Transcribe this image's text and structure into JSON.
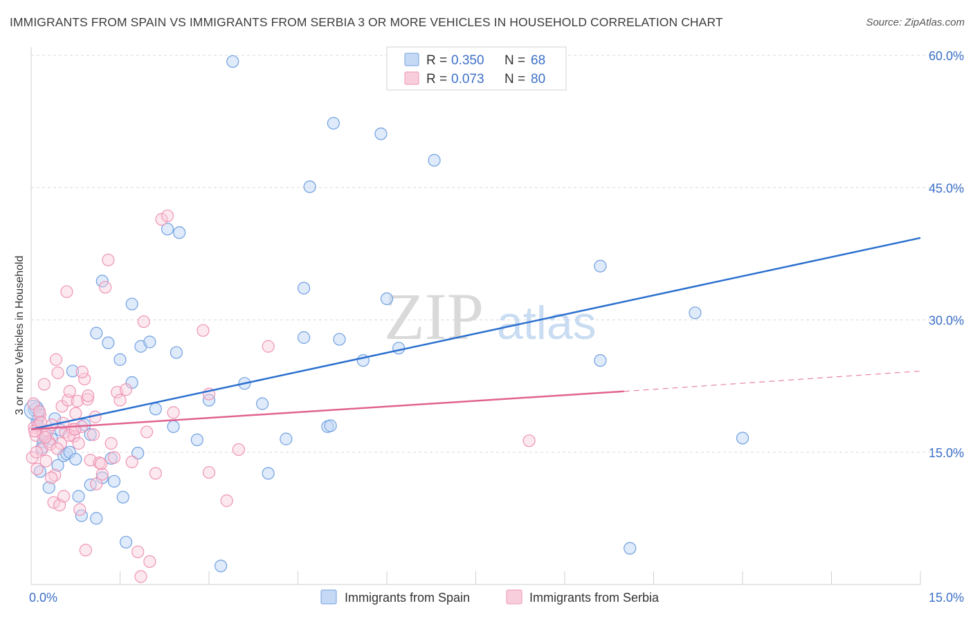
{
  "title": "IMMIGRANTS FROM SPAIN VS IMMIGRANTS FROM SERBIA 3 OR MORE VEHICLES IN HOUSEHOLD CORRELATION CHART",
  "source": "Source: ZipAtlas.com",
  "watermark": {
    "zip": "ZIP",
    "atlas": "atlas"
  },
  "colors": {
    "spain": "#6fa0e0",
    "spain_fill": "#c5d9f5",
    "spain_line": "#2a6fcf",
    "serbia": "#ee94b4",
    "serbia_fill": "#f8cddc",
    "serbia_line": "#e0628f",
    "tick_text": "#3b6fc7",
    "grid": "#d8d8d8"
  },
  "legend": {
    "rows": [
      {
        "r_label": "R =",
        "r_value": "0.350",
        "n_label": "N =",
        "n_value": "68"
      },
      {
        "r_label": "R =",
        "r_value": "0.073",
        "n_label": "N =",
        "n_value": "80"
      }
    ]
  },
  "bottom_legend": {
    "spain": "Immigrants from Spain",
    "serbia": "Immigrants from Serbia"
  },
  "chart_data": {
    "type": "scatter",
    "title": "IMMIGRANTS FROM SPAIN VS IMMIGRANTS FROM SERBIA 3 OR MORE VEHICLES IN HOUSEHOLD CORRELATION CHART",
    "xlabel": "",
    "ylabel": "3 or more Vehicles in Household",
    "xlim": [
      0,
      15
    ],
    "ylim": [
      0,
      60
    ],
    "x_tick_labels": [
      "0.0%",
      "15.0%"
    ],
    "y_tick_labels": [
      "15.0%",
      "30.0%",
      "45.0%",
      "60.0%"
    ],
    "y_ticks": [
      15,
      30,
      45,
      60
    ],
    "series": [
      {
        "name": "Immigrants from Spain",
        "r": 0.35,
        "n": 68,
        "trend": {
          "x0": 0,
          "y0": 17.6,
          "x1": 15,
          "y1": 39.3
        },
        "points": [
          [
            0.05,
            19.8
          ],
          [
            0.1,
            18.5
          ],
          [
            0.15,
            12.8
          ],
          [
            0.2,
            16.2
          ],
          [
            0.25,
            17.0
          ],
          [
            0.3,
            11.0
          ],
          [
            0.35,
            16.5
          ],
          [
            0.4,
            18.8
          ],
          [
            0.45,
            13.5
          ],
          [
            0.5,
            17.5
          ],
          [
            0.55,
            14.6
          ],
          [
            0.6,
            14.8
          ],
          [
            0.65,
            15.0
          ],
          [
            0.7,
            24.2
          ],
          [
            0.75,
            14.2
          ],
          [
            0.8,
            10.0
          ],
          [
            0.85,
            7.8
          ],
          [
            0.9,
            18.1
          ],
          [
            1.0,
            11.3
          ],
          [
            1.0,
            17.0
          ],
          [
            1.1,
            28.5
          ],
          [
            1.1,
            7.5
          ],
          [
            1.2,
            12.1
          ],
          [
            1.2,
            34.4
          ],
          [
            1.3,
            27.4
          ],
          [
            1.35,
            14.3
          ],
          [
            1.4,
            11.7
          ],
          [
            1.5,
            25.5
          ],
          [
            1.55,
            9.9
          ],
          [
            1.6,
            4.8
          ],
          [
            1.7,
            22.9
          ],
          [
            1.7,
            31.8
          ],
          [
            1.8,
            14.9
          ],
          [
            1.85,
            27.0
          ],
          [
            2.0,
            27.5
          ],
          [
            2.1,
            19.9
          ],
          [
            2.3,
            40.3
          ],
          [
            2.4,
            17.9
          ],
          [
            2.45,
            26.3
          ],
          [
            2.5,
            39.9
          ],
          [
            2.8,
            16.4
          ],
          [
            3.0,
            20.9
          ],
          [
            3.2,
            2.1
          ],
          [
            3.4,
            59.3
          ],
          [
            3.6,
            22.8
          ],
          [
            3.9,
            20.5
          ],
          [
            4.0,
            12.6
          ],
          [
            4.3,
            16.5
          ],
          [
            4.6,
            28.0
          ],
          [
            4.6,
            33.6
          ],
          [
            4.7,
            45.1
          ],
          [
            5.0,
            17.9
          ],
          [
            5.05,
            18.0
          ],
          [
            5.1,
            52.3
          ],
          [
            5.2,
            27.8
          ],
          [
            5.6,
            25.4
          ],
          [
            5.9,
            51.1
          ],
          [
            6.0,
            32.4
          ],
          [
            6.2,
            26.8
          ],
          [
            6.8,
            48.1
          ],
          [
            9.6,
            36.1
          ],
          [
            9.6,
            25.4
          ],
          [
            10.1,
            4.1
          ],
          [
            11.2,
            30.8
          ],
          [
            12.0,
            16.6
          ],
          [
            0.08,
            20.0
          ],
          [
            0.12,
            18.9
          ],
          [
            0.18,
            15.5
          ]
        ]
      },
      {
        "name": "Immigrants from Serbia",
        "r": 0.073,
        "n": 80,
        "trend": {
          "x0": 0,
          "y0": 17.6,
          "x1": 10.0,
          "y1": 21.9
        },
        "trend_dashed": {
          "x0": 10.0,
          "y0": 21.9,
          "x1": 15,
          "y1": 24.2
        },
        "points": [
          [
            0.05,
            17.8
          ],
          [
            0.08,
            16.9
          ],
          [
            0.1,
            13.1
          ],
          [
            0.12,
            18.0
          ],
          [
            0.15,
            19.2
          ],
          [
            0.18,
            15.3
          ],
          [
            0.2,
            17.0
          ],
          [
            0.22,
            22.7
          ],
          [
            0.25,
            14.0
          ],
          [
            0.28,
            17.4
          ],
          [
            0.3,
            16.2
          ],
          [
            0.32,
            15.9
          ],
          [
            0.35,
            18.1
          ],
          [
            0.38,
            9.3
          ],
          [
            0.4,
            12.4
          ],
          [
            0.42,
            25.5
          ],
          [
            0.45,
            24.0
          ],
          [
            0.48,
            9.0
          ],
          [
            0.5,
            16.0
          ],
          [
            0.52,
            20.2
          ],
          [
            0.55,
            10.0
          ],
          [
            0.58,
            17.3
          ],
          [
            0.6,
            33.2
          ],
          [
            0.62,
            20.9
          ],
          [
            0.65,
            21.9
          ],
          [
            0.7,
            17.6
          ],
          [
            0.72,
            16.8
          ],
          [
            0.75,
            19.4
          ],
          [
            0.78,
            20.8
          ],
          [
            0.8,
            16.0
          ],
          [
            0.82,
            8.5
          ],
          [
            0.85,
            17.9
          ],
          [
            0.9,
            23.3
          ],
          [
            0.92,
            3.9
          ],
          [
            0.95,
            21.0
          ],
          [
            1.0,
            14.1
          ],
          [
            1.05,
            17.0
          ],
          [
            1.1,
            11.4
          ],
          [
            1.15,
            13.8
          ],
          [
            1.2,
            12.5
          ],
          [
            1.25,
            33.7
          ],
          [
            1.3,
            36.8
          ],
          [
            1.35,
            16.0
          ],
          [
            1.4,
            14.4
          ],
          [
            1.45,
            21.8
          ],
          [
            1.5,
            20.9
          ],
          [
            1.6,
            22.1
          ],
          [
            1.7,
            13.9
          ],
          [
            1.8,
            3.7
          ],
          [
            1.85,
            0.9
          ],
          [
            1.9,
            29.8
          ],
          [
            1.95,
            17.3
          ],
          [
            2.0,
            2.6
          ],
          [
            2.1,
            12.6
          ],
          [
            2.2,
            41.4
          ],
          [
            2.3,
            41.8
          ],
          [
            2.4,
            19.5
          ],
          [
            2.9,
            28.8
          ],
          [
            3.0,
            21.6
          ],
          [
            3.0,
            12.7
          ],
          [
            3.3,
            9.5
          ],
          [
            3.5,
            15.3
          ],
          [
            4.0,
            27.0
          ],
          [
            8.4,
            16.3
          ],
          [
            0.02,
            14.4
          ],
          [
            0.04,
            20.5
          ],
          [
            0.06,
            17.4
          ],
          [
            0.09,
            15.0
          ],
          [
            0.14,
            19.6
          ],
          [
            0.16,
            18.4
          ],
          [
            0.24,
            16.7
          ],
          [
            0.34,
            12.1
          ],
          [
            0.44,
            15.4
          ],
          [
            0.54,
            18.3
          ],
          [
            0.64,
            16.9
          ],
          [
            0.74,
            17.6
          ],
          [
            0.86,
            24.1
          ],
          [
            0.96,
            21.4
          ],
          [
            1.08,
            19.0
          ],
          [
            1.18,
            13.7
          ]
        ]
      }
    ]
  }
}
